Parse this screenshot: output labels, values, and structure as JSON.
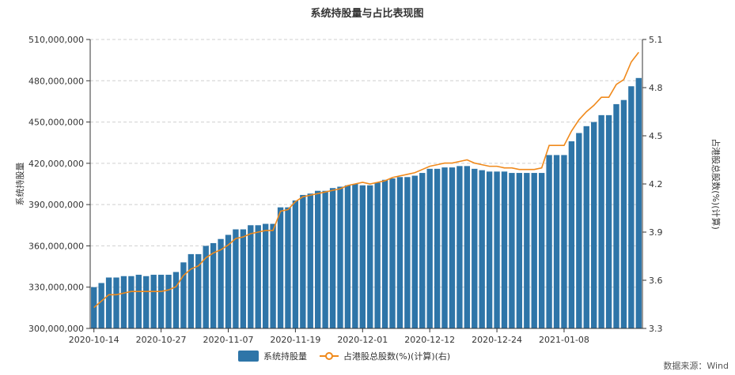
{
  "chart_data": {
    "type": "bar+line",
    "title": "系统持股量与占比表现图",
    "ylabel_left": "系统持股量",
    "ylabel_right": "占港股总股数(%)(计算)",
    "ylim_left": [
      300000000,
      510000000
    ],
    "ylim_right": [
      3.3,
      5.1
    ],
    "yticks_left": [
      "300,000,000",
      "330,000,000",
      "360,000,000",
      "390,000,000",
      "420,000,000",
      "450,000,000",
      "480,000,000",
      "510,000,000"
    ],
    "yticks_right": [
      "3.3",
      "3.6",
      "3.9",
      "4.2",
      "4.5",
      "4.8",
      "5.1"
    ],
    "yticks_left_values": [
      300000000,
      330000000,
      360000000,
      390000000,
      420000000,
      450000000,
      480000000,
      510000000
    ],
    "yticks_right_values": [
      3.3,
      3.6,
      3.9,
      4.2,
      4.5,
      4.8,
      5.1
    ],
    "xtick_labels": [
      {
        "index": 0,
        "label": "2020-10-14"
      },
      {
        "index": 9,
        "label": "2020-10-27"
      },
      {
        "index": 18,
        "label": "2020-11-07"
      },
      {
        "index": 27,
        "label": "2020-11-19"
      },
      {
        "index": 36,
        "label": "2020-12-01"
      },
      {
        "index": 45,
        "label": "2020-12-12"
      },
      {
        "index": 54,
        "label": "2020-12-24"
      },
      {
        "index": 63,
        "label": "2021-01-08"
      }
    ],
    "grid": true,
    "legend_position": "bottom-center",
    "series": [
      {
        "name": "系统持股量",
        "type": "bar",
        "axis": "left",
        "color": "#2e75a8",
        "values": [
          330000000,
          333000000,
          337000000,
          337000000,
          338000000,
          338000000,
          339000000,
          338000000,
          339000000,
          339000000,
          339000000,
          341000000,
          348000000,
          354000000,
          354000000,
          360000000,
          362000000,
          365000000,
          368000000,
          372000000,
          372000000,
          375000000,
          375000000,
          376000000,
          376000000,
          388000000,
          388000000,
          393000000,
          397000000,
          398000000,
          400000000,
          400000000,
          402000000,
          403000000,
          404000000,
          405000000,
          404000000,
          404000000,
          406000000,
          408000000,
          409000000,
          410000000,
          410000000,
          411000000,
          413000000,
          416000000,
          416000000,
          417000000,
          417000000,
          418000000,
          418000000,
          416000000,
          415000000,
          414000000,
          414000000,
          414000000,
          413000000,
          413000000,
          413000000,
          413000000,
          413000000,
          426000000,
          426000000,
          426000000,
          436000000,
          442000000,
          447000000,
          450000000,
          455000000,
          455000000,
          463000000,
          466000000,
          476000000,
          482000000
        ]
      },
      {
        "name": "占港股总股数(%)(计算)(右)",
        "type": "line",
        "axis": "right",
        "color": "#f08a1c",
        "values": [
          3.43,
          3.47,
          3.51,
          3.51,
          3.52,
          3.53,
          3.53,
          3.53,
          3.53,
          3.53,
          3.54,
          3.56,
          3.63,
          3.67,
          3.69,
          3.74,
          3.77,
          3.79,
          3.82,
          3.86,
          3.87,
          3.89,
          3.9,
          3.91,
          3.91,
          4.03,
          4.04,
          4.09,
          4.12,
          4.13,
          4.14,
          4.15,
          4.16,
          4.17,
          4.19,
          4.2,
          4.21,
          4.2,
          4.21,
          4.22,
          4.24,
          4.25,
          4.26,
          4.27,
          4.29,
          4.31,
          4.32,
          4.33,
          4.33,
          4.34,
          4.35,
          4.33,
          4.32,
          4.31,
          4.31,
          4.3,
          4.3,
          4.29,
          4.29,
          4.29,
          4.3,
          4.44,
          4.44,
          4.44,
          4.53,
          4.6,
          4.65,
          4.69,
          4.74,
          4.74,
          4.82,
          4.85,
          4.96,
          5.02
        ]
      }
    ]
  },
  "legend": {
    "bar_label": "系统持股量",
    "line_label": "占港股总股数(%)(计算)(右)"
  },
  "source_note": "数据来源：Wind"
}
